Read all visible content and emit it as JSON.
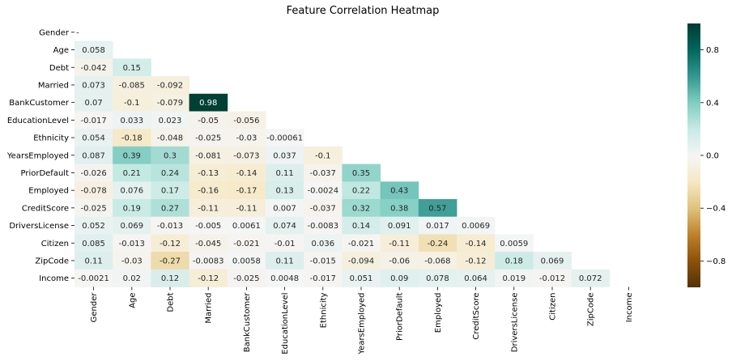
{
  "chart_data": {
    "type": "heatmap",
    "title": "Feature Correlation Heatmap",
    "xlabel": "",
    "ylabel": "",
    "colormap": "BrBG",
    "vmin": -1,
    "vmax": 1,
    "mask": "upper-triangle",
    "grid": false,
    "legend": "colorbar-right",
    "labels": [
      "Gender",
      "Age",
      "Debt",
      "Married",
      "BankCustomer",
      "EducationLevel",
      "Ethnicity",
      "YearsEmployed",
      "PriorDefault",
      "Employed",
      "CreditScore",
      "DriversLicense",
      "Citizen",
      "ZipCode",
      "Income"
    ],
    "lower_triangle": [
      [],
      [
        "0.058"
      ],
      [
        "-0.042",
        "0.15"
      ],
      [
        "0.073",
        "-0.085",
        "-0.092"
      ],
      [
        "0.07",
        "-0.1",
        "-0.079",
        "0.98"
      ],
      [
        "-0.017",
        "0.033",
        "0.023",
        "-0.05",
        "-0.056"
      ],
      [
        "0.054",
        "-0.18",
        "-0.048",
        "-0.025",
        "-0.03",
        "-0.00061"
      ],
      [
        "0.087",
        "0.39",
        "0.3",
        "-0.081",
        "-0.073",
        "0.037",
        "-0.1"
      ],
      [
        "-0.026",
        "0.21",
        "0.24",
        "-0.13",
        "-0.14",
        "0.11",
        "-0.037",
        "0.35"
      ],
      [
        "-0.078",
        "0.076",
        "0.17",
        "-0.16",
        "-0.17",
        "0.13",
        "-0.0024",
        "0.22",
        "0.43"
      ],
      [
        "-0.025",
        "0.19",
        "0.27",
        "-0.11",
        "-0.11",
        "0.007",
        "-0.037",
        "0.32",
        "0.38",
        "0.57"
      ],
      [
        "0.052",
        "0.069",
        "-0.013",
        "-0.005",
        "0.0061",
        "0.074",
        "-0.0083",
        "0.14",
        "0.091",
        "0.017",
        "0.0069"
      ],
      [
        "0.085",
        "-0.013",
        "-0.12",
        "-0.045",
        "-0.021",
        "-0.01",
        "0.036",
        "-0.021",
        "-0.11",
        "-0.24",
        "-0.14",
        "0.0059"
      ],
      [
        "0.11",
        "-0.03",
        "-0.27",
        "-0.0083",
        "0.0058",
        "0.11",
        "-0.015",
        "-0.094",
        "-0.06",
        "-0.068",
        "-0.12",
        "0.18",
        "0.069"
      ],
      [
        "-0.0021",
        "0.02",
        "0.12",
        "-0.12",
        "-0.025",
        "0.0048",
        "-0.017",
        "0.051",
        "0.09",
        "0.078",
        "0.064",
        "0.019",
        "-0.012",
        "0.072"
      ]
    ],
    "diagonal_label": "-",
    "colorbar_ticks": [
      "0.8",
      "0.4",
      "0.0",
      "−0.4",
      "−0.8"
    ],
    "colorbar_tick_values": [
      0.8,
      0.4,
      0.0,
      -0.4,
      -0.8
    ]
  }
}
